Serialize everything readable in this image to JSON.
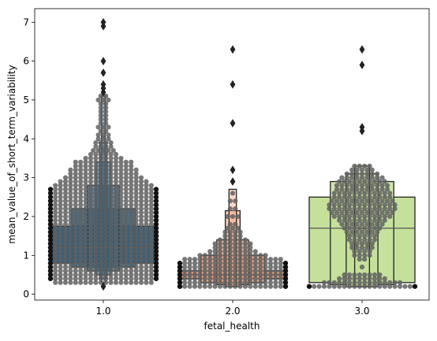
{
  "chart_data": {
    "type": "boxen",
    "xlabel": "fetal_health",
    "ylabel": "mean_value_of_short_term_variability",
    "ylim": [
      -0.15,
      7.35
    ],
    "yticks": [
      0,
      1,
      2,
      3,
      4,
      5,
      6,
      7
    ],
    "categories": [
      "1.0",
      "2.0",
      "3.0"
    ],
    "colors": {
      "fill": [
        "#1f5f8b",
        "#f4a582",
        "#c5e09b"
      ],
      "swarm": "#606060",
      "outlier": "#222222",
      "box_edge": "#222222"
    },
    "groups": [
      {
        "category": "1.0",
        "median": 1.2,
        "boxes": [
          {
            "lo": 0.8,
            "hi": 1.75,
            "half_width": 0.5,
            "alpha": 1.0
          },
          {
            "lo": 0.7,
            "hi": 2.2,
            "half_width": 0.3,
            "alpha": 0.85
          },
          {
            "lo": 0.6,
            "hi": 2.8,
            "half_width": 0.15,
            "alpha": 0.7
          },
          {
            "lo": 0.5,
            "hi": 3.4,
            "half_width": 0.07,
            "alpha": 0.55
          },
          {
            "lo": 0.4,
            "hi": 3.9,
            "half_width": 0.035,
            "alpha": 0.45
          },
          {
            "lo": 0.3,
            "hi": 5.1,
            "half_width": 0.018,
            "alpha": 0.35
          }
        ],
        "outliers": [
          0.2,
          5.2,
          5.3,
          5.4,
          5.7,
          6.0,
          6.9,
          7.0
        ],
        "swarm_levels": [
          {
            "y": 0.3,
            "n": 20
          },
          {
            "y": 0.4,
            "n": 32
          },
          {
            "y": 0.5,
            "n": 30
          },
          {
            "y": 0.6,
            "n": 32
          },
          {
            "y": 0.7,
            "n": 34
          },
          {
            "y": 0.8,
            "n": 36
          },
          {
            "y": 0.9,
            "n": 36
          },
          {
            "y": 1.0,
            "n": 38
          },
          {
            "y": 1.1,
            "n": 38
          },
          {
            "y": 1.2,
            "n": 38
          },
          {
            "y": 1.3,
            "n": 38
          },
          {
            "y": 1.4,
            "n": 38
          },
          {
            "y": 1.5,
            "n": 38
          },
          {
            "y": 1.6,
            "n": 36
          },
          {
            "y": 1.7,
            "n": 36
          },
          {
            "y": 1.8,
            "n": 34
          },
          {
            "y": 1.9,
            "n": 32
          },
          {
            "y": 2.0,
            "n": 30
          },
          {
            "y": 2.1,
            "n": 28
          },
          {
            "y": 2.2,
            "n": 28
          },
          {
            "y": 2.3,
            "n": 26
          },
          {
            "y": 2.4,
            "n": 26
          },
          {
            "y": 2.5,
            "n": 24
          },
          {
            "y": 2.6,
            "n": 22
          },
          {
            "y": 2.7,
            "n": 22
          },
          {
            "y": 2.8,
            "n": 20
          },
          {
            "y": 2.9,
            "n": 18
          },
          {
            "y": 3.0,
            "n": 16
          },
          {
            "y": 3.1,
            "n": 14
          },
          {
            "y": 3.2,
            "n": 14
          },
          {
            "y": 3.3,
            "n": 12
          },
          {
            "y": 3.4,
            "n": 12
          },
          {
            "y": 3.5,
            "n": 8
          },
          {
            "y": 3.6,
            "n": 6
          },
          {
            "y": 3.7,
            "n": 5
          },
          {
            "y": 3.8,
            "n": 4
          },
          {
            "y": 3.9,
            "n": 4
          },
          {
            "y": 4.0,
            "n": 3
          },
          {
            "y": 4.1,
            "n": 3
          },
          {
            "y": 4.2,
            "n": 2
          },
          {
            "y": 4.3,
            "n": 3
          },
          {
            "y": 4.4,
            "n": 2
          },
          {
            "y": 4.5,
            "n": 2
          },
          {
            "y": 4.6,
            "n": 2
          },
          {
            "y": 4.7,
            "n": 2
          },
          {
            "y": 4.8,
            "n": 2
          },
          {
            "y": 4.9,
            "n": 2
          },
          {
            "y": 5.0,
            "n": 3
          },
          {
            "y": 5.1,
            "n": 2
          }
        ]
      },
      {
        "category": "2.0",
        "median": 0.5,
        "boxes": [
          {
            "lo": 0.4,
            "hi": 0.6,
            "half_width": 0.5,
            "alpha": 1.0
          },
          {
            "lo": 0.3,
            "hi": 1.0,
            "half_width": 0.3,
            "alpha": 0.85
          },
          {
            "lo": 0.25,
            "hi": 1.4,
            "half_width": 0.15,
            "alpha": 0.7
          },
          {
            "lo": 0.2,
            "hi": 2.15,
            "half_width": 0.07,
            "alpha": 0.55
          },
          {
            "lo": 0.2,
            "hi": 2.7,
            "half_width": 0.035,
            "alpha": 0.45
          }
        ],
        "outliers": [
          2.9,
          3.2,
          4.4,
          5.4,
          6.3
        ],
        "swarm_levels": [
          {
            "y": 0.2,
            "n": 36
          },
          {
            "y": 0.3,
            "n": 36
          },
          {
            "y": 0.4,
            "n": 38
          },
          {
            "y": 0.5,
            "n": 38
          },
          {
            "y": 0.6,
            "n": 36
          },
          {
            "y": 0.7,
            "n": 30
          },
          {
            "y": 0.8,
            "n": 24
          },
          {
            "y": 0.9,
            "n": 20
          },
          {
            "y": 1.0,
            "n": 14
          },
          {
            "y": 1.1,
            "n": 10
          },
          {
            "y": 1.2,
            "n": 8
          },
          {
            "y": 1.3,
            "n": 8
          },
          {
            "y": 1.4,
            "n": 6
          },
          {
            "y": 1.5,
            "n": 4
          },
          {
            "y": 1.6,
            "n": 4
          },
          {
            "y": 1.7,
            "n": 3
          },
          {
            "y": 1.8,
            "n": 2
          },
          {
            "y": 2.0,
            "n": 3
          },
          {
            "y": 2.2,
            "n": 2
          },
          {
            "y": 2.4,
            "n": 2
          },
          {
            "y": 2.6,
            "n": 1
          }
        ]
      },
      {
        "category": "3.0",
        "median": 1.7,
        "boxes": [
          {
            "lo": 0.3,
            "hi": 2.5,
            "half_width": 0.5,
            "alpha": 1.0
          },
          {
            "lo": 0.25,
            "hi": 2.9,
            "half_width": 0.3,
            "alpha": 0.85
          },
          {
            "lo": 0.2,
            "hi": 3.1,
            "half_width": 0.15,
            "alpha": 0.7
          },
          {
            "lo": 0.2,
            "hi": 3.3,
            "half_width": 0.07,
            "alpha": 0.55
          }
        ],
        "outliers": [
          4.2,
          4.3,
          5.9,
          6.3
        ],
        "swarm_levels": [
          {
            "y": 0.2,
            "n": 24
          },
          {
            "y": 0.3,
            "n": 16
          },
          {
            "y": 0.4,
            "n": 10
          },
          {
            "y": 0.5,
            "n": 8
          },
          {
            "y": 0.7,
            "n": 1
          },
          {
            "y": 0.9,
            "n": 2
          },
          {
            "y": 1.0,
            "n": 4
          },
          {
            "y": 1.1,
            "n": 4
          },
          {
            "y": 1.2,
            "n": 5
          },
          {
            "y": 1.3,
            "n": 5
          },
          {
            "y": 1.4,
            "n": 6
          },
          {
            "y": 1.5,
            "n": 6
          },
          {
            "y": 1.6,
            "n": 7
          },
          {
            "y": 1.7,
            "n": 8
          },
          {
            "y": 1.8,
            "n": 9
          },
          {
            "y": 1.9,
            "n": 10
          },
          {
            "y": 2.0,
            "n": 12
          },
          {
            "y": 2.1,
            "n": 13
          },
          {
            "y": 2.2,
            "n": 14
          },
          {
            "y": 2.3,
            "n": 14
          },
          {
            "y": 2.4,
            "n": 13
          },
          {
            "y": 2.5,
            "n": 12
          },
          {
            "y": 2.6,
            "n": 12
          },
          {
            "y": 2.7,
            "n": 11
          },
          {
            "y": 2.8,
            "n": 11
          },
          {
            "y": 2.9,
            "n": 10
          },
          {
            "y": 3.0,
            "n": 9
          },
          {
            "y": 3.1,
            "n": 7
          },
          {
            "y": 3.2,
            "n": 5
          },
          {
            "y": 3.3,
            "n": 4
          }
        ]
      }
    ]
  }
}
